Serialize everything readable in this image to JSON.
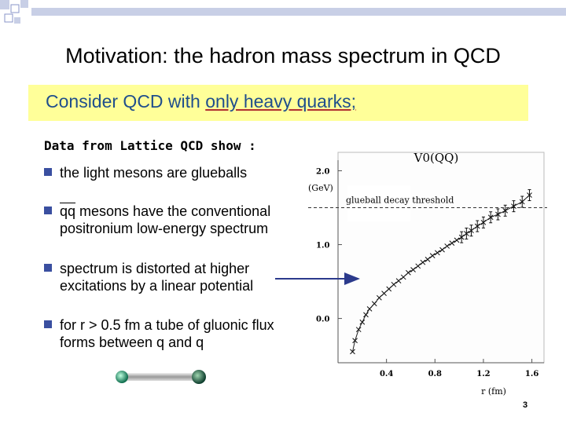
{
  "slide": {
    "title": "Motivation: the hadron mass spectrum in QCD",
    "banner": {
      "prefix": "Consider QCD with ",
      "underlined": "only heavy quarks;"
    },
    "heading": "Data from Lattice QCD show :",
    "bullets": [
      {
        "lines": [
          "the light mesons are glueballs"
        ]
      },
      {
        "overbar": "qq",
        "lines": [
          " mesons have the conventional",
          "positronium low-energy spectrum"
        ]
      },
      {
        "lines": [
          "spectrum is distorted at higher",
          "excitations by a linear potential"
        ]
      },
      {
        "lines": [
          "for r > 0.5 fm a tube of gluonic flux",
          "forms between q and q"
        ]
      }
    ],
    "page_number": "3",
    "colors": {
      "bullet": "#3a4fa0",
      "banner_bg": "#ffff99",
      "banner_text": "#1f4e8c",
      "arrow": "#2b3a8c"
    }
  },
  "chart_data": {
    "type": "scatter",
    "title": "V0(QQ)",
    "ylabel_unit": "(GeV)",
    "xlabel": "r (fm)",
    "x_ticks": [
      "0.4",
      "0.8",
      "1.2",
      "1.6"
    ],
    "y_ticks": [
      "0.0",
      "1.0",
      "2.0"
    ],
    "xlim": [
      0.0,
      1.7
    ],
    "ylim": [
      -0.6,
      2.25
    ],
    "threshold": {
      "label": "glueball decay threshold",
      "y": 1.5
    },
    "points": [
      [
        0.12,
        -0.45
      ],
      [
        0.14,
        -0.3
      ],
      [
        0.17,
        -0.15
      ],
      [
        0.2,
        -0.05
      ],
      [
        0.23,
        0.05
      ],
      [
        0.26,
        0.13
      ],
      [
        0.3,
        0.2
      ],
      [
        0.34,
        0.28
      ],
      [
        0.38,
        0.34
      ],
      [
        0.42,
        0.4
      ],
      [
        0.46,
        0.46
      ],
      [
        0.5,
        0.51
      ],
      [
        0.54,
        0.56
      ],
      [
        0.58,
        0.62
      ],
      [
        0.62,
        0.66
      ],
      [
        0.66,
        0.71
      ],
      [
        0.7,
        0.76
      ],
      [
        0.74,
        0.8
      ],
      [
        0.78,
        0.85
      ],
      [
        0.82,
        0.89
      ],
      [
        0.86,
        0.93
      ],
      [
        0.9,
        0.98
      ],
      [
        0.94,
        1.02
      ],
      [
        0.98,
        1.06
      ],
      [
        1.02,
        1.1
      ],
      [
        1.06,
        1.15
      ],
      [
        1.1,
        1.19
      ],
      [
        1.15,
        1.25
      ],
      [
        1.2,
        1.3
      ],
      [
        1.26,
        1.37
      ],
      [
        1.32,
        1.41
      ],
      [
        1.38,
        1.46
      ],
      [
        1.45,
        1.52
      ],
      [
        1.52,
        1.58
      ],
      [
        1.58,
        1.67
      ]
    ]
  }
}
